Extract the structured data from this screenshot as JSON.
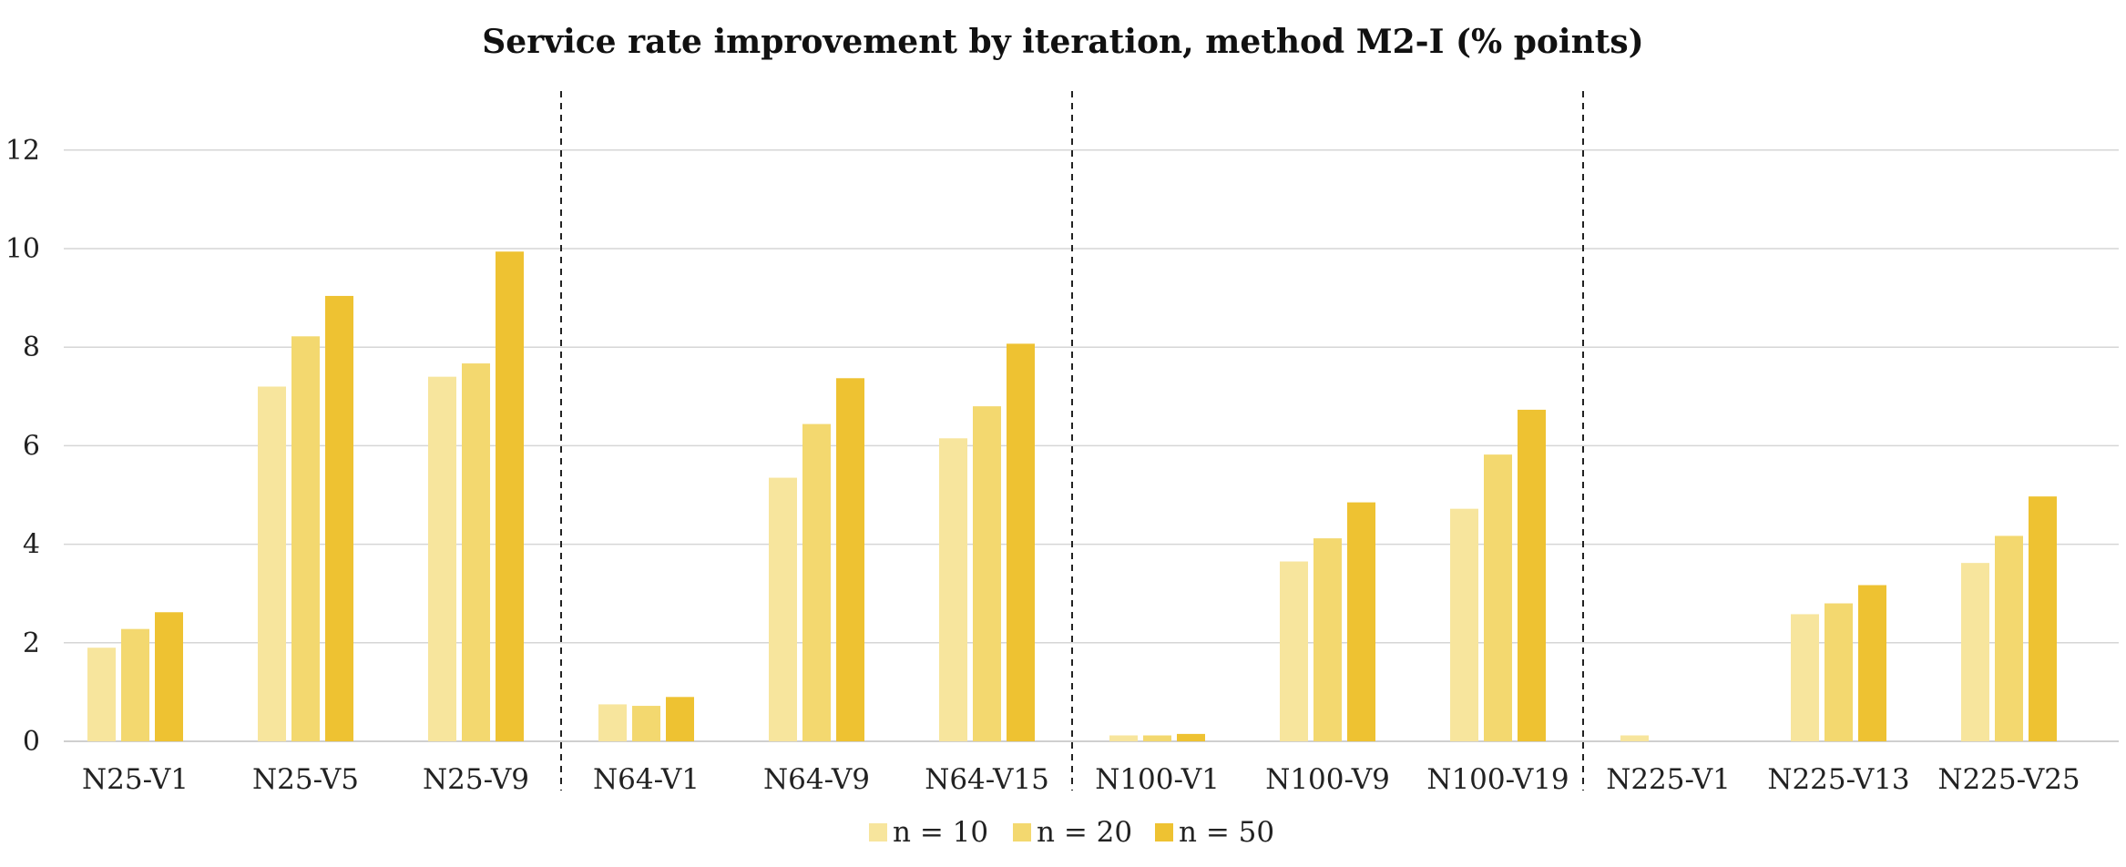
{
  "chart_data": {
    "type": "bar",
    "title": "Service rate improvement by iteration, method M2-I (% points)",
    "xlabel": "",
    "ylabel": "",
    "ylim": [
      0,
      13
    ],
    "yticks": [
      0,
      2,
      4,
      6,
      8,
      10,
      12
    ],
    "grid": true,
    "legend_position": "bottom",
    "categories": [
      "N25-V1",
      "N25-V5",
      "N25-V9",
      "N64-V1",
      "N64-V9",
      "N64-V15",
      "N100-V1",
      "N100-V9",
      "N100-V19",
      "N225-V1",
      "N225-V13",
      "N225-V25"
    ],
    "group_separators_after": [
      2,
      5,
      8
    ],
    "series": [
      {
        "name": "n = 10",
        "color": "#F7E59D",
        "values": [
          1.9,
          7.2,
          7.4,
          0.75,
          5.35,
          6.15,
          0.12,
          3.65,
          4.72,
          0.12,
          2.58,
          3.62
        ]
      },
      {
        "name": "n = 20",
        "color": "#F3D86F",
        "values": [
          2.28,
          8.22,
          7.67,
          0.72,
          6.44,
          6.8,
          0.12,
          4.12,
          5.82,
          0.0,
          2.8,
          4.17
        ]
      },
      {
        "name": "n = 50",
        "color": "#EEC232",
        "values": [
          2.62,
          9.04,
          9.94,
          0.9,
          7.37,
          8.07,
          0.15,
          4.85,
          6.73,
          0.0,
          3.17,
          4.97
        ]
      }
    ]
  }
}
